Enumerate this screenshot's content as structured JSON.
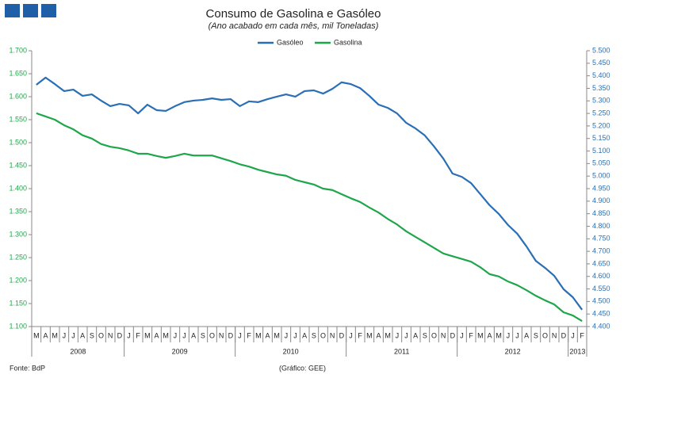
{
  "chart_data": {
    "type": "line",
    "title": "Consumo de Gasolina e Gasóleo",
    "subtitle": "(Ano acabado em cada mês,  mil Toneladas)",
    "source": "Fonte: BdP",
    "credit": "(Gráfico: GEE)",
    "categories": [
      "M",
      "A",
      "M",
      "J",
      "J",
      "A",
      "S",
      "O",
      "N",
      "D",
      "J",
      "F",
      "M",
      "A",
      "M",
      "J",
      "J",
      "A",
      "S",
      "O",
      "N",
      "D",
      "J",
      "F",
      "M",
      "A",
      "M",
      "J",
      "J",
      "A",
      "S",
      "O",
      "N",
      "D",
      "J",
      "F",
      "M",
      "A",
      "M",
      "J",
      "J",
      "A",
      "S",
      "O",
      "N",
      "D",
      "J",
      "F",
      "M",
      "A",
      "M",
      "J",
      "J",
      "A",
      "S",
      "O",
      "N",
      "D",
      "J",
      "F"
    ],
    "years": [
      {
        "label": "2008",
        "count": 10
      },
      {
        "label": "2009",
        "count": 12
      },
      {
        "label": "2010",
        "count": 12
      },
      {
        "label": "2011",
        "count": 12
      },
      {
        "label": "2012",
        "count": 12
      },
      {
        "label": "2013",
        "count": 2
      }
    ],
    "series": [
      {
        "name": "Gasóleo",
        "color": "#2a6fb5",
        "axis": "y2",
        "values": [
          5364,
          5393,
          5367,
          5339,
          5345,
          5320,
          5326,
          5301,
          5279,
          5288,
          5282,
          5250,
          5285,
          5263,
          5260,
          5279,
          5295,
          5301,
          5304,
          5310,
          5304,
          5307,
          5279,
          5298,
          5295,
          5307,
          5317,
          5326,
          5317,
          5339,
          5342,
          5329,
          5348,
          5374,
          5367,
          5351,
          5320,
          5285,
          5272,
          5250,
          5212,
          5190,
          5162,
          5118,
          5070,
          5010,
          4997,
          4972,
          4928,
          4884,
          4849,
          4805,
          4770,
          4719,
          4662,
          4634,
          4602,
          4549,
          4517,
          4467
        ]
      },
      {
        "name": "Gasolina",
        "color": "#1fa64b",
        "values": [
          1564,
          1557,
          1550,
          1538,
          1529,
          1516,
          1509,
          1497,
          1491,
          1488,
          1483,
          1476,
          1476,
          1471,
          1467,
          1471,
          1476,
          1472,
          1472,
          1472,
          1466,
          1460,
          1453,
          1448,
          1441,
          1436,
          1431,
          1428,
          1419,
          1414,
          1409,
          1400,
          1397,
          1388,
          1379,
          1371,
          1359,
          1348,
          1334,
          1322,
          1307,
          1295,
          1283,
          1271,
          1259,
          1253,
          1247,
          1241,
          1229,
          1214,
          1209,
          1198,
          1190,
          1179,
          1167,
          1157,
          1148,
          1131,
          1124,
          1112
        ]
      }
    ],
    "ylim": [
      1100,
      1700
    ],
    "yticks": [
      {
        "value": 1100,
        "label": "1.100"
      },
      {
        "value": 1150,
        "label": "1.150"
      },
      {
        "value": 1200,
        "label": "1.200"
      },
      {
        "value": 1250,
        "label": "1.250"
      },
      {
        "value": 1300,
        "label": "1.300"
      },
      {
        "value": 1350,
        "label": "1.350"
      },
      {
        "value": 1400,
        "label": "1.400"
      },
      {
        "value": 1450,
        "label": "1.450"
      },
      {
        "value": 1500,
        "label": "1.500"
      },
      {
        "value": 1550,
        "label": "1.550"
      },
      {
        "value": 1600,
        "label": "1.600"
      },
      {
        "value": 1650,
        "label": "1.650"
      },
      {
        "value": 1700,
        "label": "1.700"
      }
    ],
    "y2lim": [
      4400,
      5500
    ],
    "y2ticks": [
      {
        "value": 4400,
        "label": "4.400"
      },
      {
        "value": 4450,
        "label": "4.450"
      },
      {
        "value": 4500,
        "label": "4.500"
      },
      {
        "value": 4550,
        "label": "4.550"
      },
      {
        "value": 4600,
        "label": "4.600"
      },
      {
        "value": 4650,
        "label": "4.650"
      },
      {
        "value": 4700,
        "label": "4.700"
      },
      {
        "value": 4750,
        "label": "4.750"
      },
      {
        "value": 4800,
        "label": "4.800"
      },
      {
        "value": 4850,
        "label": "4.850"
      },
      {
        "value": 4900,
        "label": "4.900"
      },
      {
        "value": 4950,
        "label": "4.950"
      },
      {
        "value": 5000,
        "label": "5.000"
      },
      {
        "value": 5050,
        "label": "5.050"
      },
      {
        "value": 5100,
        "label": "5.100"
      },
      {
        "value": 5150,
        "label": "5.150"
      },
      {
        "value": 5200,
        "label": "5.200"
      },
      {
        "value": 5250,
        "label": "5.250"
      },
      {
        "value": 5300,
        "label": "5.300"
      },
      {
        "value": 5350,
        "label": "5.350"
      },
      {
        "value": 5400,
        "label": "5.400"
      },
      {
        "value": 5450,
        "label": "5.450"
      },
      {
        "value": 5500,
        "label": "5.500"
      }
    ],
    "grid": false,
    "legend": "top"
  }
}
